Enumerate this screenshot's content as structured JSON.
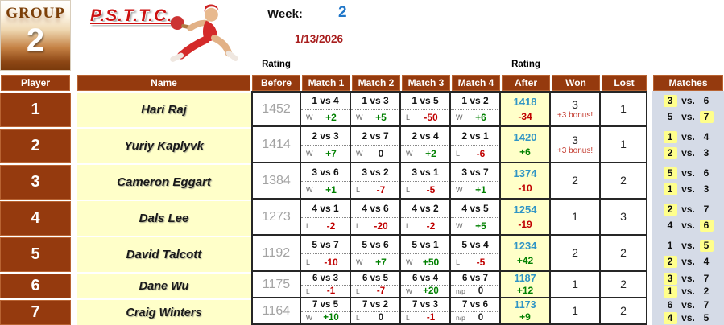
{
  "group_box": {
    "label": "GROUP",
    "number": "2"
  },
  "logo": {
    "club": "P.S.T.T.C.",
    "icon": "table-tennis-player-icon"
  },
  "week": {
    "label": "Week:",
    "value": "2"
  },
  "date": "1/13/2026",
  "rating_label_before": "Rating",
  "rating_label_after": "Rating",
  "colors": {
    "header_brown": "#953a0e",
    "name_bg": "#ffffc9",
    "win_green": "#008000",
    "loss_red": "#c00000",
    "after_blue": "#3095c5",
    "highlight_yellow": "#ffff8c",
    "matches_bg": "#d5dbe7",
    "logo_red": "#cc1111",
    "week_blue": "#1f76c8",
    "date_red": "#a81e1e"
  },
  "table": {
    "vs_label": "vs.",
    "headers": {
      "player": "Player",
      "name": "Name",
      "before": "Before",
      "match1": "Match 1",
      "match2": "Match 2",
      "match3": "Match 3",
      "match4": "Match 4",
      "after": "After",
      "won": "Won",
      "lost": "Lost",
      "matches": "Matches"
    },
    "rows": [
      {
        "rank": "1",
        "name": "Hari Raj",
        "rating_before": "1452",
        "matches": [
          {
            "pair": "1 vs 4",
            "result": "W",
            "delta": "+2"
          },
          {
            "pair": "1 vs 3",
            "result": "W",
            "delta": "+5"
          },
          {
            "pair": "1 vs 5",
            "result": "L",
            "delta": "-50"
          },
          {
            "pair": "1 vs 2",
            "result": "W",
            "delta": "+6"
          }
        ],
        "rating_after": "1418",
        "rating_change": "-34",
        "won": "3",
        "bonus": "+3 bonus!",
        "lost": "1",
        "next_matches": [
          {
            "left": "3",
            "right": "6",
            "highlight": "left"
          },
          {
            "left": "5",
            "right": "7",
            "highlight": "right"
          }
        ]
      },
      {
        "rank": "2",
        "name": "Yuriy Kaplyvk",
        "rating_before": "1414",
        "matches": [
          {
            "pair": "2 vs 3",
            "result": "W",
            "delta": "+7"
          },
          {
            "pair": "2 vs 7",
            "result": "W",
            "delta": "0"
          },
          {
            "pair": "2 vs 4",
            "result": "W",
            "delta": "+2"
          },
          {
            "pair": "2 vs 1",
            "result": "L",
            "delta": "-6"
          }
        ],
        "rating_after": "1420",
        "rating_change": "+6",
        "won": "3",
        "bonus": "+3 bonus!",
        "lost": "1",
        "next_matches": [
          {
            "left": "1",
            "right": "4",
            "highlight": "left"
          },
          {
            "left": "2",
            "right": "3",
            "highlight": "left"
          }
        ]
      },
      {
        "rank": "3",
        "name": "Cameron Eggart",
        "rating_before": "1384",
        "matches": [
          {
            "pair": "3 vs 6",
            "result": "W",
            "delta": "+1"
          },
          {
            "pair": "3 vs 2",
            "result": "L",
            "delta": "-7"
          },
          {
            "pair": "3 vs 1",
            "result": "L",
            "delta": "-5"
          },
          {
            "pair": "3 vs 7",
            "result": "W",
            "delta": "+1"
          }
        ],
        "rating_after": "1374",
        "rating_change": "-10",
        "won": "2",
        "bonus": "",
        "lost": "2",
        "next_matches": [
          {
            "left": "5",
            "right": "6",
            "highlight": "left"
          },
          {
            "left": "1",
            "right": "3",
            "highlight": "left"
          }
        ]
      },
      {
        "rank": "4",
        "name": "Dals Lee",
        "rating_before": "1273",
        "matches": [
          {
            "pair": "4 vs 1",
            "result": "L",
            "delta": "-2"
          },
          {
            "pair": "4 vs 6",
            "result": "L",
            "delta": "-20"
          },
          {
            "pair": "4 vs 2",
            "result": "L",
            "delta": "-2"
          },
          {
            "pair": "4 vs 5",
            "result": "W",
            "delta": "+5"
          }
        ],
        "rating_after": "1254",
        "rating_change": "-19",
        "won": "1",
        "bonus": "",
        "lost": "3",
        "next_matches": [
          {
            "left": "2",
            "right": "7",
            "highlight": "left"
          },
          {
            "left": "4",
            "right": "6",
            "highlight": "right"
          }
        ]
      },
      {
        "rank": "5",
        "name": "David Talcott",
        "rating_before": "1192",
        "matches": [
          {
            "pair": "5 vs 7",
            "result": "L",
            "delta": "-10"
          },
          {
            "pair": "5 vs 6",
            "result": "W",
            "delta": "+7"
          },
          {
            "pair": "5 vs 1",
            "result": "W",
            "delta": "+50"
          },
          {
            "pair": "5 vs 4",
            "result": "L",
            "delta": "-5"
          }
        ],
        "rating_after": "1234",
        "rating_change": "+42",
        "won": "2",
        "bonus": "",
        "lost": "2",
        "next_matches": [
          {
            "left": "1",
            "right": "5",
            "highlight": "right"
          },
          {
            "left": "2",
            "right": "4",
            "highlight": "left"
          }
        ]
      },
      {
        "rank": "6",
        "name": "Dane Wu",
        "rating_before": "1175",
        "matches": [
          {
            "pair": "6 vs 3",
            "result": "L",
            "delta": "-1"
          },
          {
            "pair": "6 vs 5",
            "result": "L",
            "delta": "-7"
          },
          {
            "pair": "6 vs 4",
            "result": "W",
            "delta": "+20"
          },
          {
            "pair": "6 vs 7",
            "result": "n/p",
            "delta": "0"
          }
        ],
        "rating_after": "1187",
        "rating_change": "+12",
        "won": "1",
        "bonus": "",
        "lost": "2",
        "next_matches": [
          {
            "left": "3",
            "right": "7",
            "highlight": "left"
          },
          {
            "left": "1",
            "right": "2",
            "highlight": "left"
          }
        ]
      },
      {
        "rank": "7",
        "name": "Craig Winters",
        "rating_before": "1164",
        "matches": [
          {
            "pair": "7 vs 5",
            "result": "W",
            "delta": "+10"
          },
          {
            "pair": "7 vs 2",
            "result": "L",
            "delta": "0"
          },
          {
            "pair": "7 vs 3",
            "result": "L",
            "delta": "-1"
          },
          {
            "pair": "7 vs 6",
            "result": "n/p",
            "delta": "0"
          }
        ],
        "rating_after": "1173",
        "rating_change": "+9",
        "won": "1",
        "bonus": "",
        "lost": "2",
        "next_matches": [
          {
            "left": "6",
            "right": "7",
            "highlight": "none"
          },
          {
            "left": "4",
            "right": "5",
            "highlight": "left"
          }
        ]
      }
    ]
  }
}
